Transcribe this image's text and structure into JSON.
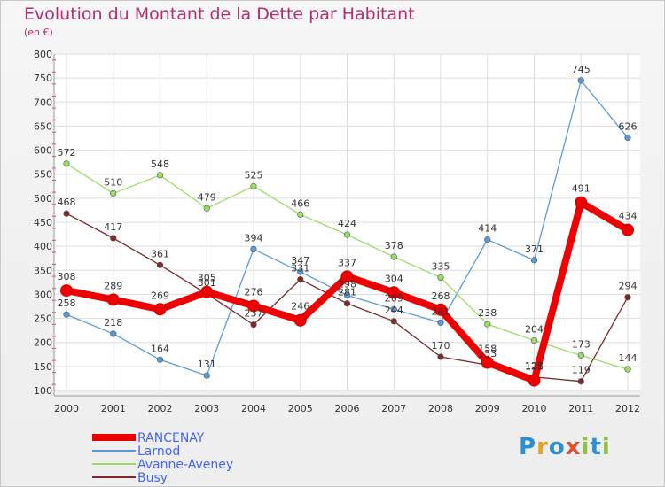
{
  "title": "Evolution du Montant de la Dette par Habitant",
  "subtitle": "(en €)",
  "logo": "Proxiti",
  "chart_data": {
    "type": "line",
    "x": [
      "2000",
      "2001",
      "2002",
      "2003",
      "2004",
      "2005",
      "2006",
      "2007",
      "2008",
      "2009",
      "2010",
      "2011",
      "2012"
    ],
    "ylim": [
      100,
      800
    ],
    "yticks": [
      100,
      150,
      200,
      250,
      300,
      350,
      400,
      450,
      500,
      550,
      600,
      650,
      700,
      750,
      800
    ],
    "grid": true,
    "legend_position": "bottom-left",
    "series": [
      {
        "name": "RANCENAY",
        "color": "#ee0000",
        "values": [
          308,
          289,
          269,
          305,
          276,
          246,
          337,
          304,
          268,
          158,
          121,
          491,
          434
        ]
      },
      {
        "name": "Larnod",
        "color": "#5b9bd5",
        "values": [
          258,
          218,
          164,
          131,
          394,
          347,
          298,
          269,
          241,
          414,
          371,
          745,
          626
        ]
      },
      {
        "name": "Avanne-Aveney",
        "color": "#99dd66",
        "values": [
          572,
          510,
          548,
          479,
          525,
          466,
          424,
          378,
          335,
          238,
          204,
          173,
          144
        ]
      },
      {
        "name": "Busy",
        "color": "#7a2a2a",
        "values": [
          468,
          417,
          361,
          301,
          237,
          331,
          281,
          244,
          170,
          153,
          128,
          119,
          294
        ]
      }
    ]
  }
}
